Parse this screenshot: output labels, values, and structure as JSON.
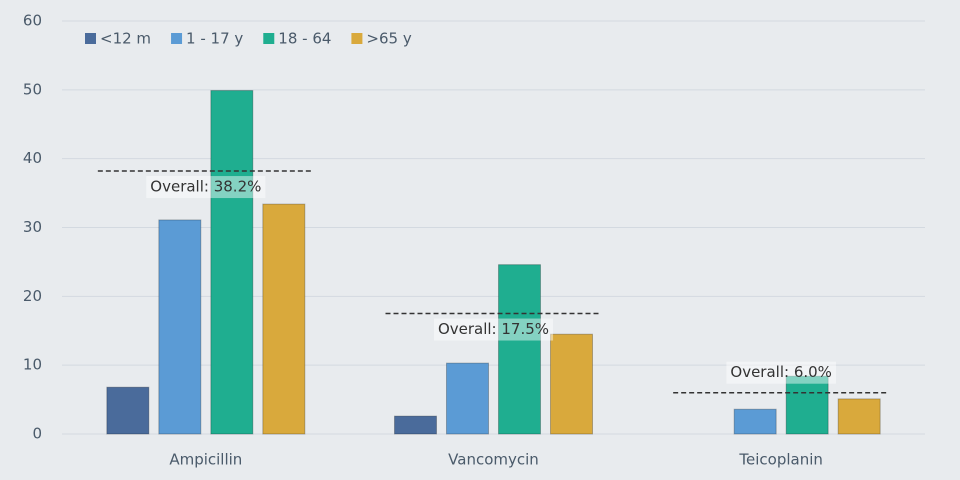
{
  "chart_data": {
    "type": "bar",
    "categories": [
      "Ampicillin",
      "Vancomycin",
      "Teicoplanin"
    ],
    "series": [
      {
        "name": "<12 m",
        "color": "#4a6b9b",
        "values": [
          6.8,
          2.6,
          null
        ]
      },
      {
        "name": "1 - 17 y",
        "color": "#5b9bd5",
        "values": [
          31.1,
          10.3,
          3.6
        ]
      },
      {
        "name": "18 - 64",
        "color": "#1fae90",
        "values": [
          49.9,
          24.6,
          8.4
        ]
      },
      {
        "name": ">65 y",
        "color": "#d9a93c",
        "values": [
          33.4,
          14.5,
          5.1
        ]
      }
    ],
    "reference_lines": [
      {
        "value": 38.2,
        "label": "Overall: 38.2%"
      },
      {
        "value": 17.5,
        "label": "Overall: 17.5%"
      },
      {
        "value": 6.0,
        "label": "Overall: 6.0%"
      }
    ],
    "ylim": [
      0,
      60
    ],
    "yticks": [
      0,
      10,
      20,
      30,
      40,
      50,
      60
    ],
    "grid": true,
    "legend": "top-left"
  }
}
